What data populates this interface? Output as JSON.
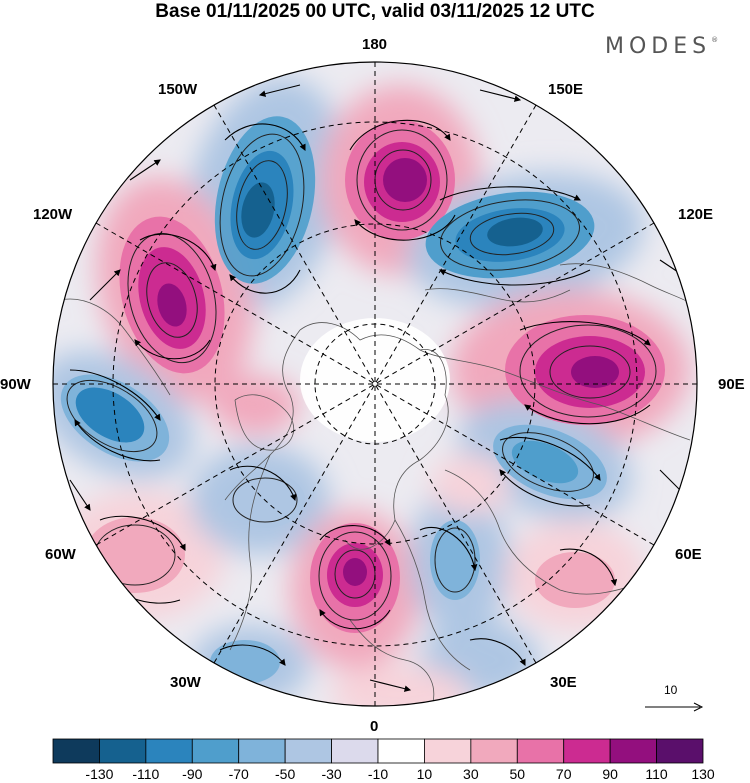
{
  "title": "Base 01/11/2025 00 UTC, valid 03/11/2025 12 UTC",
  "logo": "MODES",
  "logo_mark": "®",
  "longitude_labels": {
    "lon_180": "180",
    "lon_150e": "150E",
    "lon_120e": "120E",
    "lon_90e": "90E",
    "lon_60e": "60E",
    "lon_30e": "30E",
    "lon_0": "0",
    "lon_30w": "30W",
    "lon_60w": "60W",
    "lon_90w": "90W",
    "lon_120w": "120W",
    "lon_150w": "150W"
  },
  "reference_vector": "10",
  "colorbar": {
    "ticks": [
      "-130",
      "-110",
      "-90",
      "-70",
      "-50",
      "-30",
      "-10",
      "10",
      "30",
      "50",
      "70",
      "90",
      "110",
      "130"
    ],
    "colors": [
      "#0e3a5c",
      "#15618f",
      "#2b84bd",
      "#4f9ecc",
      "#7fb3da",
      "#aec6e3",
      "#dcdaec",
      "#ffffff",
      "#f7d3da",
      "#f1a9bd",
      "#e872a8",
      "#cc2b91",
      "#930f7e",
      "#5a0f6b"
    ]
  },
  "anomaly_centers": [
    {
      "label": "150W negative",
      "value": -100,
      "color": "#2b84bd"
    },
    {
      "label": "180 positive",
      "value": 120,
      "color": "#930f7e"
    },
    {
      "label": "130E negative",
      "value": -110,
      "color": "#2b84bd"
    },
    {
      "label": "90E positive",
      "value": 100,
      "color": "#cc2b91"
    },
    {
      "label": "60E negative",
      "value": -70,
      "color": "#4f9ecc"
    },
    {
      "label": "0 positive",
      "value": 100,
      "color": "#cc2b91"
    },
    {
      "label": "120W positive",
      "value": 110,
      "color": "#cc2b91"
    },
    {
      "label": "90W negative",
      "value": -90,
      "color": "#2b84bd"
    }
  ]
}
